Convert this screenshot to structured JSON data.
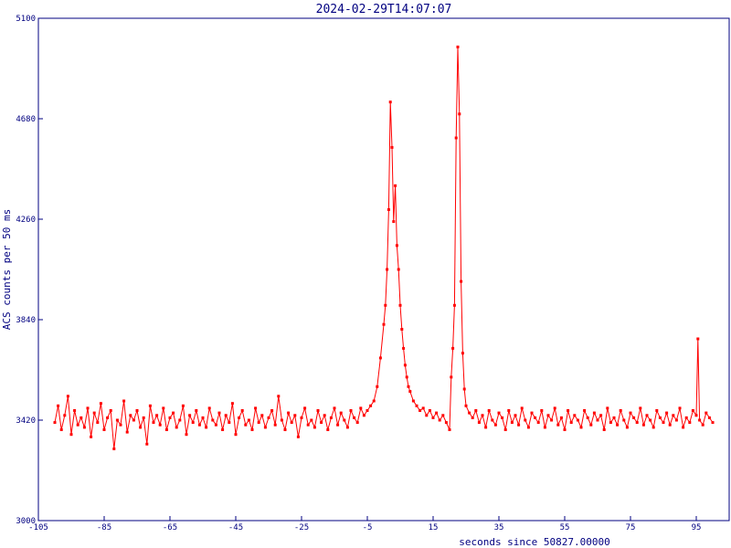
{
  "chart_data": {
    "type": "line",
    "title": "2024-02-29T14:07:07",
    "xlabel": "seconds since 50827.00000",
    "ylabel": "ACS counts per 50 ms",
    "xlim": [
      -105,
      105
    ],
    "ylim": [
      3000,
      5100
    ],
    "xticks": [
      -105,
      -85,
      -65,
      -45,
      -25,
      -5,
      15,
      35,
      55,
      75,
      95
    ],
    "yticks": [
      3000,
      3420,
      3840,
      4260,
      4680,
      5100
    ],
    "grid": false,
    "colors": {
      "series": "#ff0000",
      "axes": "#000080"
    },
    "series": [
      {
        "points": [
          [
            -100,
            3410
          ],
          [
            -99,
            3480
          ],
          [
            -98,
            3380
          ],
          [
            -97,
            3440
          ],
          [
            -96,
            3520
          ],
          [
            -95,
            3360
          ],
          [
            -94,
            3460
          ],
          [
            -93,
            3400
          ],
          [
            -92,
            3430
          ],
          [
            -91,
            3390
          ],
          [
            -90,
            3470
          ],
          [
            -89,
            3350
          ],
          [
            -88,
            3450
          ],
          [
            -87,
            3410
          ],
          [
            -86,
            3490
          ],
          [
            -85,
            3380
          ],
          [
            -84,
            3430
          ],
          [
            -83,
            3460
          ],
          [
            -82,
            3300
          ],
          [
            -81,
            3420
          ],
          [
            -80,
            3400
          ],
          [
            -79,
            3500
          ],
          [
            -78,
            3370
          ],
          [
            -77,
            3440
          ],
          [
            -76,
            3420
          ],
          [
            -75,
            3460
          ],
          [
            -74,
            3390
          ],
          [
            -73,
            3430
          ],
          [
            -72,
            3320
          ],
          [
            -71,
            3480
          ],
          [
            -70,
            3410
          ],
          [
            -69,
            3440
          ],
          [
            -68,
            3400
          ],
          [
            -67,
            3470
          ],
          [
            -66,
            3380
          ],
          [
            -65,
            3430
          ],
          [
            -64,
            3450
          ],
          [
            -63,
            3390
          ],
          [
            -62,
            3420
          ],
          [
            -61,
            3480
          ],
          [
            -60,
            3360
          ],
          [
            -59,
            3440
          ],
          [
            -58,
            3410
          ],
          [
            -57,
            3460
          ],
          [
            -56,
            3400
          ],
          [
            -55,
            3430
          ],
          [
            -54,
            3390
          ],
          [
            -53,
            3470
          ],
          [
            -52,
            3420
          ],
          [
            -51,
            3400
          ],
          [
            -50,
            3450
          ],
          [
            -49,
            3380
          ],
          [
            -48,
            3440
          ],
          [
            -47,
            3410
          ],
          [
            -46,
            3490
          ],
          [
            -45,
            3360
          ],
          [
            -44,
            3430
          ],
          [
            -43,
            3460
          ],
          [
            -42,
            3400
          ],
          [
            -41,
            3420
          ],
          [
            -40,
            3380
          ],
          [
            -39,
            3470
          ],
          [
            -38,
            3410
          ],
          [
            -37,
            3440
          ],
          [
            -36,
            3390
          ],
          [
            -35,
            3430
          ],
          [
            -34,
            3460
          ],
          [
            -33,
            3400
          ],
          [
            -32,
            3520
          ],
          [
            -31,
            3420
          ],
          [
            -30,
            3380
          ],
          [
            -29,
            3450
          ],
          [
            -28,
            3410
          ],
          [
            -27,
            3440
          ],
          [
            -26,
            3350
          ],
          [
            -25,
            3430
          ],
          [
            -24,
            3470
          ],
          [
            -23,
            3400
          ],
          [
            -22,
            3420
          ],
          [
            -21,
            3390
          ],
          [
            -20,
            3460
          ],
          [
            -19,
            3410
          ],
          [
            -18,
            3440
          ],
          [
            -17,
            3380
          ],
          [
            -16,
            3430
          ],
          [
            -15,
            3470
          ],
          [
            -14,
            3400
          ],
          [
            -13,
            3450
          ],
          [
            -12,
            3420
          ],
          [
            -11,
            3390
          ],
          [
            -10,
            3460
          ],
          [
            -9,
            3430
          ],
          [
            -8,
            3410
          ],
          [
            -7,
            3470
          ],
          [
            -6,
            3440
          ],
          [
            -5,
            3460
          ],
          [
            -4,
            3480
          ],
          [
            -3,
            3500
          ],
          [
            -2,
            3560
          ],
          [
            -1,
            3680
          ],
          [
            0,
            3820
          ],
          [
            0.5,
            3900
          ],
          [
            1,
            4050
          ],
          [
            1.5,
            4300
          ],
          [
            2,
            4750
          ],
          [
            2.5,
            4560
          ],
          [
            3,
            4250
          ],
          [
            3.5,
            4400
          ],
          [
            4,
            4150
          ],
          [
            4.5,
            4050
          ],
          [
            5,
            3900
          ],
          [
            5.5,
            3800
          ],
          [
            6,
            3720
          ],
          [
            6.5,
            3650
          ],
          [
            7,
            3600
          ],
          [
            7.5,
            3560
          ],
          [
            8,
            3540
          ],
          [
            9,
            3500
          ],
          [
            10,
            3480
          ],
          [
            11,
            3460
          ],
          [
            12,
            3470
          ],
          [
            13,
            3440
          ],
          [
            14,
            3460
          ],
          [
            15,
            3430
          ],
          [
            16,
            3450
          ],
          [
            17,
            3420
          ],
          [
            18,
            3440
          ],
          [
            19,
            3410
          ],
          [
            20,
            3380
          ],
          [
            20.5,
            3600
          ],
          [
            21,
            3720
          ],
          [
            21.5,
            3900
          ],
          [
            22,
            4600
          ],
          [
            22.5,
            4980
          ],
          [
            23,
            4700
          ],
          [
            23.5,
            4000
          ],
          [
            24,
            3700
          ],
          [
            24.5,
            3550
          ],
          [
            25,
            3480
          ],
          [
            26,
            3450
          ],
          [
            27,
            3430
          ],
          [
            28,
            3460
          ],
          [
            29,
            3410
          ],
          [
            30,
            3440
          ],
          [
            31,
            3390
          ],
          [
            32,
            3460
          ],
          [
            33,
            3420
          ],
          [
            34,
            3400
          ],
          [
            35,
            3450
          ],
          [
            36,
            3430
          ],
          [
            37,
            3380
          ],
          [
            38,
            3460
          ],
          [
            39,
            3410
          ],
          [
            40,
            3440
          ],
          [
            41,
            3400
          ],
          [
            42,
            3470
          ],
          [
            43,
            3420
          ],
          [
            44,
            3390
          ],
          [
            45,
            3450
          ],
          [
            46,
            3430
          ],
          [
            47,
            3410
          ],
          [
            48,
            3460
          ],
          [
            49,
            3390
          ],
          [
            50,
            3440
          ],
          [
            51,
            3420
          ],
          [
            52,
            3470
          ],
          [
            53,
            3400
          ],
          [
            54,
            3430
          ],
          [
            55,
            3380
          ],
          [
            56,
            3460
          ],
          [
            57,
            3410
          ],
          [
            58,
            3440
          ],
          [
            59,
            3420
          ],
          [
            60,
            3390
          ],
          [
            61,
            3460
          ],
          [
            62,
            3430
          ],
          [
            63,
            3400
          ],
          [
            64,
            3450
          ],
          [
            65,
            3420
          ],
          [
            66,
            3440
          ],
          [
            67,
            3380
          ],
          [
            68,
            3470
          ],
          [
            69,
            3410
          ],
          [
            70,
            3430
          ],
          [
            71,
            3400
          ],
          [
            72,
            3460
          ],
          [
            73,
            3420
          ],
          [
            74,
            3390
          ],
          [
            75,
            3450
          ],
          [
            76,
            3430
          ],
          [
            77,
            3410
          ],
          [
            78,
            3470
          ],
          [
            79,
            3400
          ],
          [
            80,
            3440
          ],
          [
            81,
            3420
          ],
          [
            82,
            3390
          ],
          [
            83,
            3460
          ],
          [
            84,
            3430
          ],
          [
            85,
            3410
          ],
          [
            86,
            3450
          ],
          [
            87,
            3400
          ],
          [
            88,
            3440
          ],
          [
            89,
            3420
          ],
          [
            90,
            3470
          ],
          [
            91,
            3390
          ],
          [
            92,
            3430
          ],
          [
            93,
            3410
          ],
          [
            94,
            3460
          ],
          [
            95,
            3440
          ],
          [
            95.5,
            3760
          ],
          [
            96,
            3420
          ],
          [
            97,
            3400
          ],
          [
            98,
            3450
          ],
          [
            99,
            3430
          ],
          [
            100,
            3410
          ]
        ]
      }
    ]
  }
}
